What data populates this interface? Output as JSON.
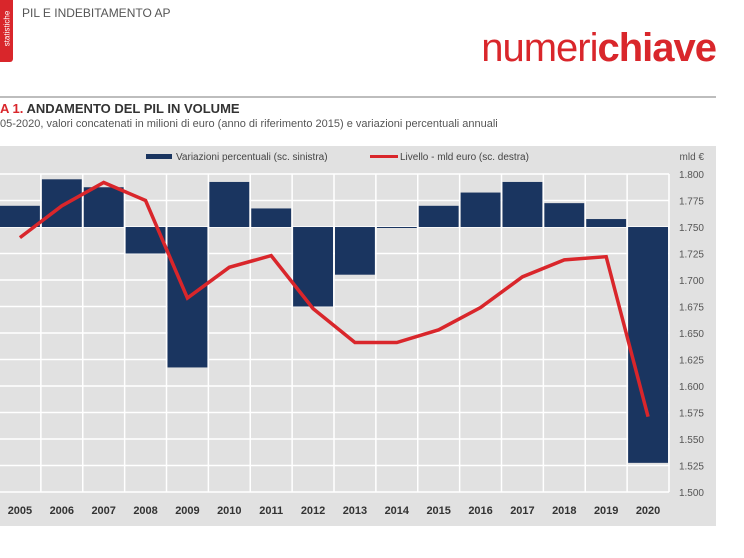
{
  "header": {
    "badge_text": "statistiche",
    "section": "PIL E INDEBITAMENTO AP",
    "brand_thin": "numeri",
    "brand_bold": "chiave"
  },
  "figure": {
    "number": "A 1.",
    "title": "ANDAMENTO DEL PIL IN VOLUME",
    "subtitle": "05-2020, valori concatenati in milioni di euro (anno di riferimento 2015) e variazioni percentuali annuali"
  },
  "colors": {
    "bar": "#1a3560",
    "line": "#d9262b",
    "panel": "#e1e1e1",
    "brand": "#d9262b"
  },
  "chart_data": {
    "type": "bar+line",
    "categories": [
      "2005",
      "2006",
      "2007",
      "2008",
      "2009",
      "2010",
      "2011",
      "2012",
      "2013",
      "2014",
      "2015",
      "2016",
      "2017",
      "2018",
      "2019",
      "2020"
    ],
    "series": [
      {
        "name": "Variazioni percentuali (sc. sinistra)",
        "type": "bar",
        "axis": "left",
        "values": [
          0.8,
          1.8,
          1.5,
          -1.0,
          -5.3,
          1.7,
          0.7,
          -3.0,
          -1.8,
          0.0,
          0.8,
          1.3,
          1.7,
          0.9,
          0.3,
          -8.9
        ]
      },
      {
        "name": "Livello - mld euro (sc. destra)",
        "type": "line",
        "axis": "right",
        "values": [
          1740,
          1770,
          1792,
          1775,
          1683,
          1712,
          1723,
          1673,
          1641,
          1641,
          1653,
          1674,
          1703,
          1719,
          1722,
          1571
        ]
      }
    ],
    "left_axis": {
      "ylim": [
        -10,
        2
      ]
    },
    "right_axis": {
      "label": "mld €",
      "ylim": [
        1500,
        1800
      ],
      "ticks": [
        "1.500",
        "1.525",
        "1.550",
        "1.575",
        "1.600",
        "1.625",
        "1.650",
        "1.675",
        "1.700",
        "1.725",
        "1.750",
        "1.775",
        "1.800"
      ]
    },
    "grid": true,
    "legend": "top-center"
  }
}
